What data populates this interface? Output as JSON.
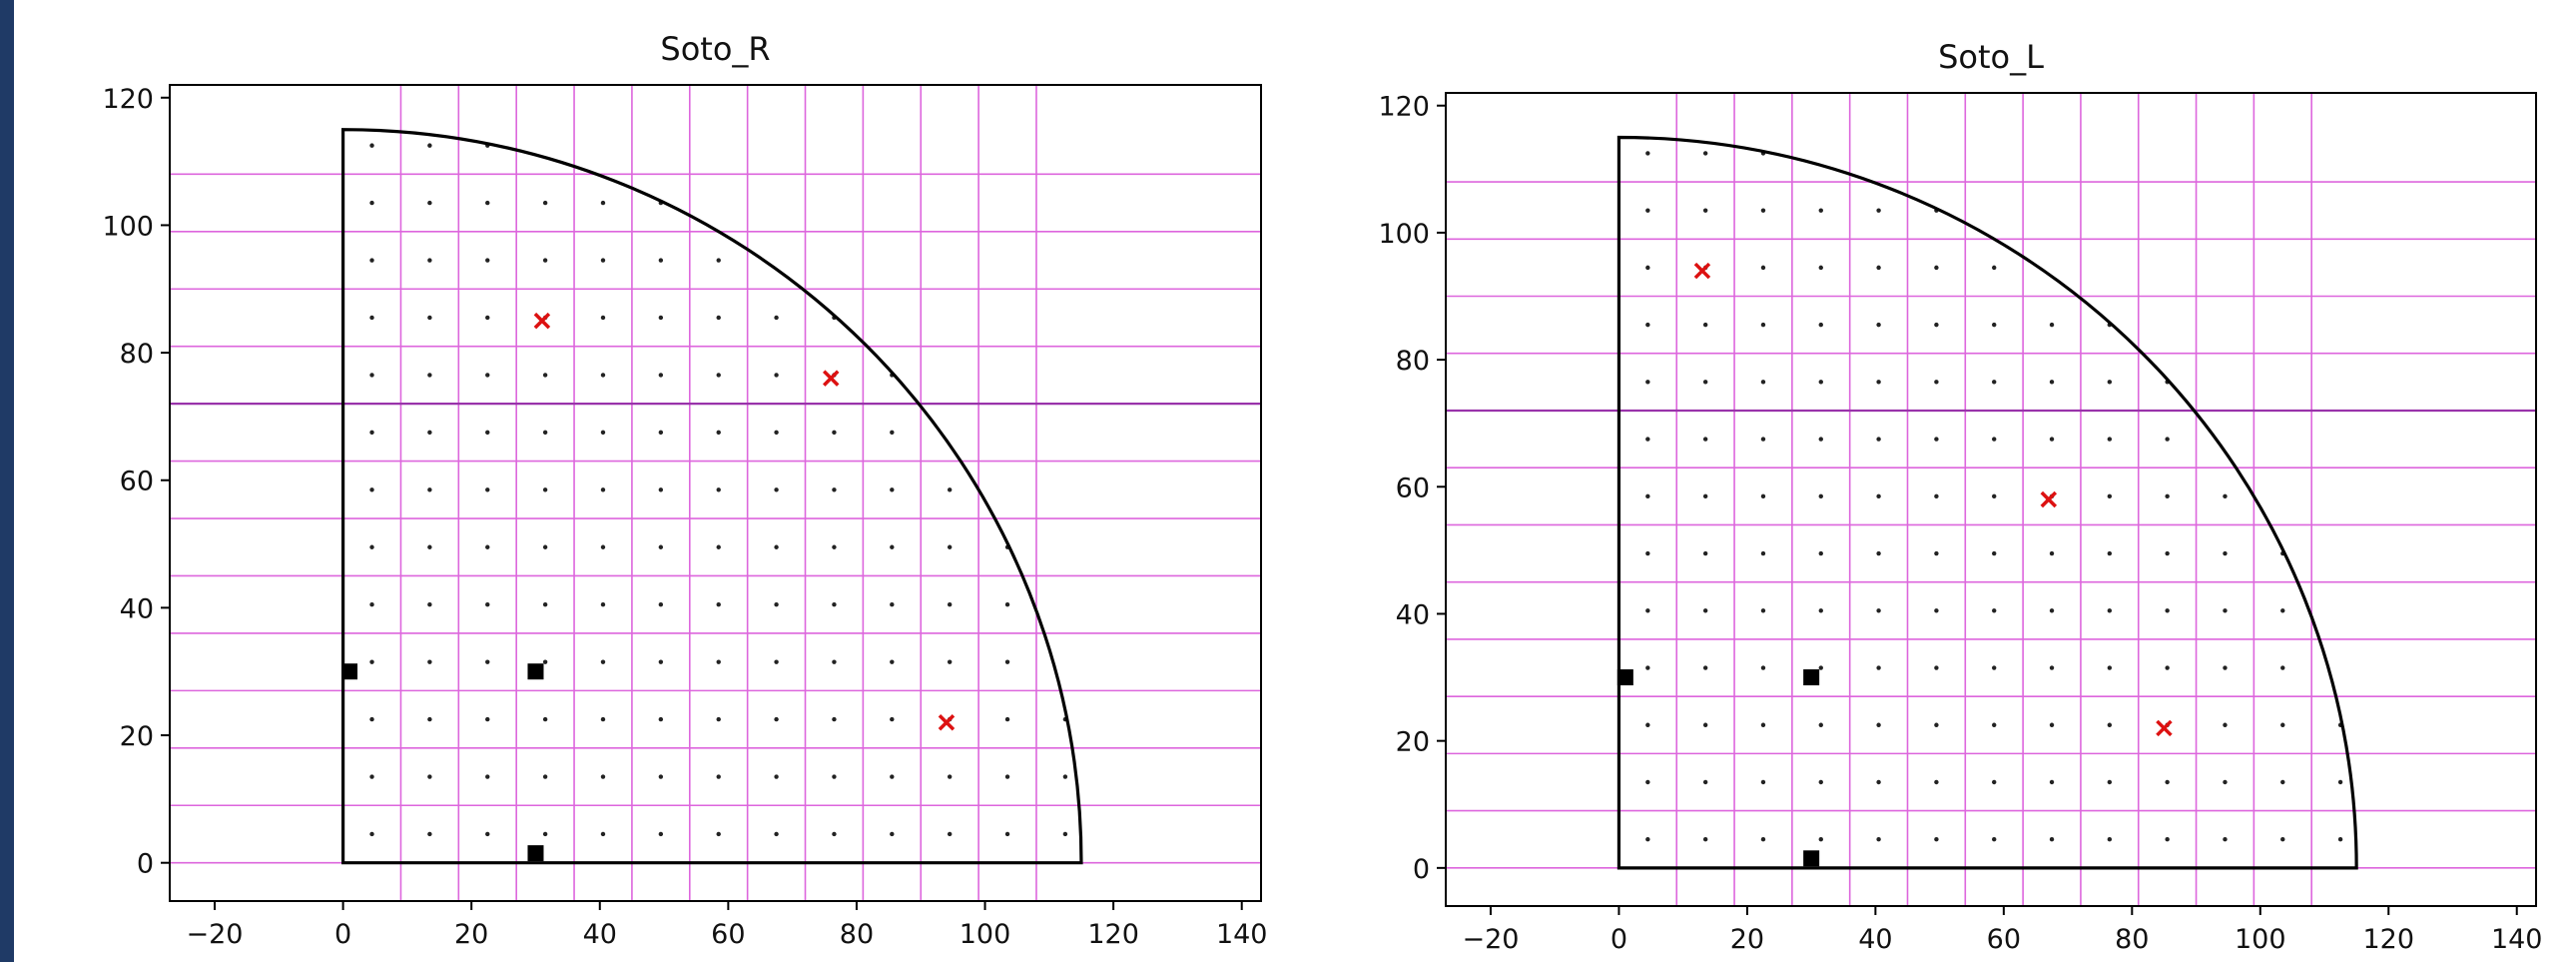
{
  "colors": {
    "gridline": "#dd66dd",
    "highlight_line": "#9933aa",
    "outline": "#000000",
    "grid_point": "#222222",
    "cross_marker": "#dd1111",
    "square_marker": "#000000",
    "page_edge": "#1f3a66"
  },
  "chart_data": [
    {
      "type": "scatter",
      "title": "Soto_R",
      "xlabel": "",
      "ylabel": "",
      "xlim": [
        -27,
        143
      ],
      "ylim": [
        -6,
        122
      ],
      "xticks": [
        "−20",
        "0",
        "20",
        "40",
        "60",
        "80",
        "100",
        "120",
        "140"
      ],
      "yticks": [
        "0",
        "20",
        "40",
        "60",
        "80",
        "100",
        "120"
      ],
      "boundary": {
        "shape": "quarter-circle",
        "radius": 115,
        "x_min": 0,
        "y_min": 0
      },
      "vertical_gridlines": [
        9,
        18,
        27,
        36,
        45,
        54,
        63,
        72,
        81,
        90,
        99,
        108
      ],
      "horizontal_gridlines": [
        9,
        18,
        27,
        36,
        45,
        54,
        63,
        72,
        81,
        90,
        99,
        108
      ],
      "highlight_horizontal": 72,
      "sample_grid": {
        "x_start": 4.5,
        "y_start": 4.5,
        "step": 9
      },
      "series": [
        {
          "marker": "x",
          "color": "red",
          "points": [
            [
              31,
              85
            ],
            [
              76,
              76
            ],
            [
              94,
              22
            ]
          ]
        },
        {
          "marker": "square",
          "color": "black",
          "points": [
            [
              1,
              30
            ],
            [
              30,
              30
            ],
            [
              30,
              1.5
            ]
          ]
        }
      ]
    },
    {
      "type": "scatter",
      "title": "Soto_L",
      "xlabel": "",
      "ylabel": "",
      "xlim": [
        -27,
        143
      ],
      "ylim": [
        -6,
        122
      ],
      "xticks": [
        "−20",
        "0",
        "20",
        "40",
        "60",
        "80",
        "100",
        "120",
        "140"
      ],
      "yticks": [
        "0",
        "20",
        "40",
        "60",
        "80",
        "100",
        "120"
      ],
      "boundary": {
        "shape": "quarter-circle",
        "radius": 115,
        "x_min": 0,
        "y_min": 0
      },
      "vertical_gridlines": [
        9,
        18,
        27,
        36,
        45,
        54,
        63,
        72,
        81,
        90,
        99,
        108
      ],
      "horizontal_gridlines": [
        9,
        18,
        27,
        36,
        45,
        54,
        63,
        72,
        81,
        90,
        99,
        108
      ],
      "highlight_horizontal": 72,
      "sample_grid": {
        "x_start": 4.5,
        "y_start": 4.5,
        "step": 9
      },
      "series": [
        {
          "marker": "x",
          "color": "red",
          "points": [
            [
              13,
              94
            ],
            [
              67,
              58
            ],
            [
              85,
              22
            ]
          ]
        },
        {
          "marker": "square",
          "color": "black",
          "points": [
            [
              1,
              30
            ],
            [
              30,
              30
            ],
            [
              30,
              1.5
            ]
          ]
        }
      ]
    }
  ]
}
